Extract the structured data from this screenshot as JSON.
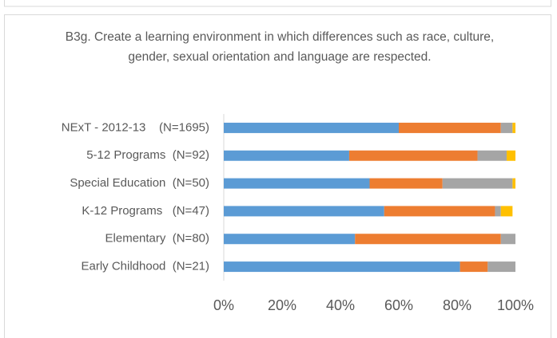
{
  "chart_data": {
    "type": "stacked-bar-horizontal",
    "title": "B3g. Create a learning environment in which differences such as race, culture, gender, sexual orientation and language are respected.",
    "categories": [
      "NExT - 2012-13    (N=1695)",
      "5-12 Programs  (N=92)",
      "Special Education  (N=50)",
      "K-12 Programs   (N=47)",
      "Elementary  (N=80)",
      "Early Childhood  (N=21)"
    ],
    "series": [
      {
        "color": "#5b9bd5",
        "values": [
          60,
          43,
          50,
          55,
          45,
          81
        ]
      },
      {
        "color": "#ed7d31",
        "values": [
          35,
          44,
          25,
          38,
          50,
          9.5
        ]
      },
      {
        "color": "#a5a5a5",
        "values": [
          4,
          10,
          24,
          2,
          5,
          9.5
        ]
      },
      {
        "color": "#ffc000",
        "values": [
          1,
          3,
          1,
          4,
          0,
          0
        ]
      }
    ],
    "xlim": [
      0,
      100
    ],
    "xticks": [
      {
        "value": 0,
        "label": "0%"
      },
      {
        "value": 20,
        "label": "20%"
      },
      {
        "value": 40,
        "label": "40%"
      },
      {
        "value": 60,
        "label": "60%"
      },
      {
        "value": 80,
        "label": "80%"
      },
      {
        "value": 100,
        "label": "100%"
      }
    ]
  }
}
